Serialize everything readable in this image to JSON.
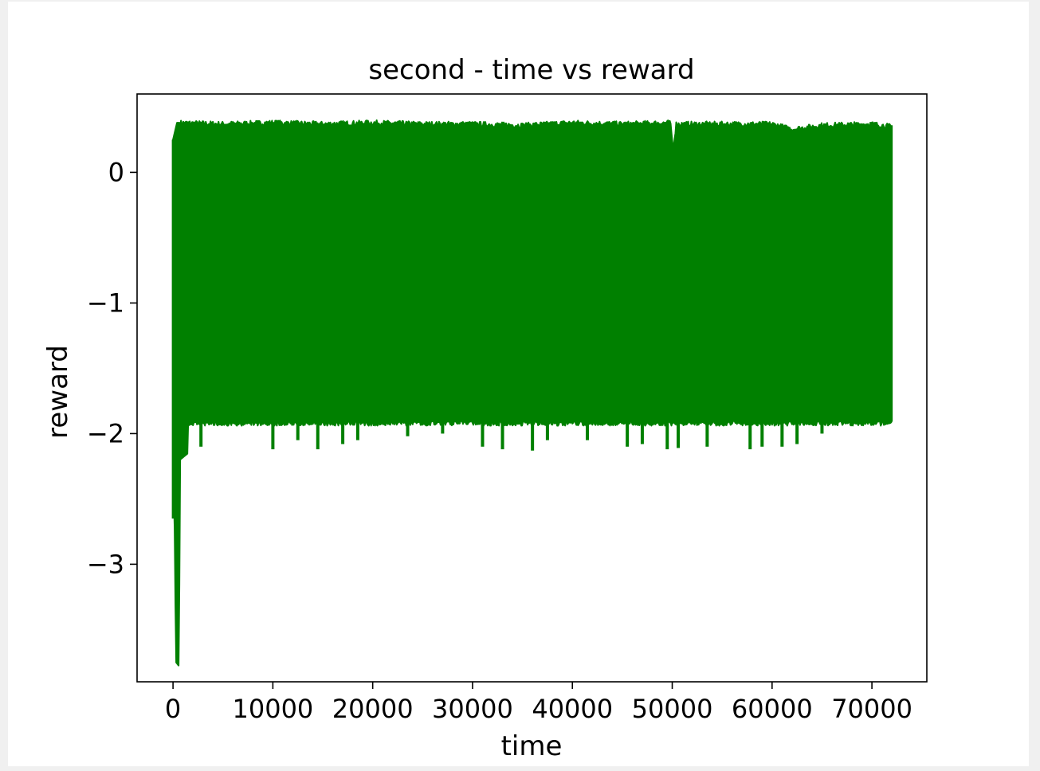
{
  "chart_data": {
    "type": "line",
    "title": "second - time vs reward",
    "xlabel": "time",
    "ylabel": "reward",
    "xlim": [
      -3600,
      75500
    ],
    "ylim": [
      -3.9,
      0.6
    ],
    "xticks": [
      {
        "value": 0,
        "label": "0"
      },
      {
        "value": 10000,
        "label": "10000"
      },
      {
        "value": 20000,
        "label": "20000"
      },
      {
        "value": 30000,
        "label": "30000"
      },
      {
        "value": 40000,
        "label": "40000"
      },
      {
        "value": 50000,
        "label": "50000"
      },
      {
        "value": 60000,
        "label": "60000"
      },
      {
        "value": 70000,
        "label": "70000"
      }
    ],
    "yticks": [
      {
        "value": 0,
        "label": "0"
      },
      {
        "value": -1,
        "label": "−1"
      },
      {
        "value": -2,
        "label": "−2"
      },
      {
        "value": -3,
        "label": "−3"
      }
    ],
    "grid": false,
    "legend": "none",
    "series": [
      {
        "color": "#008000",
        "style": "dense oscillating line (filled band)",
        "x_range": [
          0,
          72000
        ],
        "upper_envelope": [
          [
            0,
            0.25
          ],
          [
            400,
            0.38
          ],
          [
            5000,
            0.37
          ],
          [
            10000,
            0.38
          ],
          [
            15000,
            0.37
          ],
          [
            20000,
            0.38
          ],
          [
            25000,
            0.37
          ],
          [
            30000,
            0.37
          ],
          [
            35000,
            0.36
          ],
          [
            40000,
            0.38
          ],
          [
            45000,
            0.37
          ],
          [
            49800,
            0.38
          ],
          [
            50100,
            0.18
          ],
          [
            50400,
            0.37
          ],
          [
            55000,
            0.37
          ],
          [
            60000,
            0.37
          ],
          [
            62000,
            0.33
          ],
          [
            65000,
            0.36
          ],
          [
            70000,
            0.37
          ],
          [
            72000,
            0.35
          ]
        ],
        "lower_envelope": [
          [
            0,
            -2.3
          ],
          [
            150,
            -2.65
          ],
          [
            300,
            -3.75
          ],
          [
            600,
            -3.78
          ],
          [
            700,
            -2.2
          ],
          [
            1500,
            -2.15
          ],
          [
            5000,
            -2.05
          ],
          [
            10000,
            -2.08
          ],
          [
            15000,
            -2.12
          ],
          [
            20000,
            -1.95
          ],
          [
            25000,
            -2.02
          ],
          [
            30000,
            -2.05
          ],
          [
            35000,
            -2.1
          ],
          [
            40000,
            -1.95
          ],
          [
            45000,
            -2.1
          ],
          [
            50000,
            -2.12
          ],
          [
            55000,
            -2.05
          ],
          [
            60000,
            -2.1
          ],
          [
            65000,
            -2.0
          ],
          [
            70000,
            -1.95
          ],
          [
            72000,
            -1.9
          ]
        ],
        "typical_lower": -1.9,
        "spikes_below": [
          {
            "x": 2800,
            "y": -2.1
          },
          {
            "x": 10000,
            "y": -2.12
          },
          {
            "x": 12500,
            "y": -2.05
          },
          {
            "x": 14500,
            "y": -2.12
          },
          {
            "x": 17000,
            "y": -2.08
          },
          {
            "x": 18500,
            "y": -2.05
          },
          {
            "x": 23500,
            "y": -2.02
          },
          {
            "x": 27000,
            "y": -2.0
          },
          {
            "x": 31000,
            "y": -2.1
          },
          {
            "x": 33000,
            "y": -2.12
          },
          {
            "x": 36000,
            "y": -2.13
          },
          {
            "x": 37500,
            "y": -2.05
          },
          {
            "x": 41500,
            "y": -2.05
          },
          {
            "x": 45500,
            "y": -2.1
          },
          {
            "x": 47000,
            "y": -2.08
          },
          {
            "x": 49500,
            "y": -2.12
          },
          {
            "x": 50600,
            "y": -2.11
          },
          {
            "x": 53500,
            "y": -2.1
          },
          {
            "x": 57800,
            "y": -2.12
          },
          {
            "x": 59000,
            "y": -2.1
          },
          {
            "x": 61000,
            "y": -2.1
          },
          {
            "x": 62500,
            "y": -2.08
          },
          {
            "x": 65000,
            "y": -2.0
          }
        ]
      }
    ]
  }
}
